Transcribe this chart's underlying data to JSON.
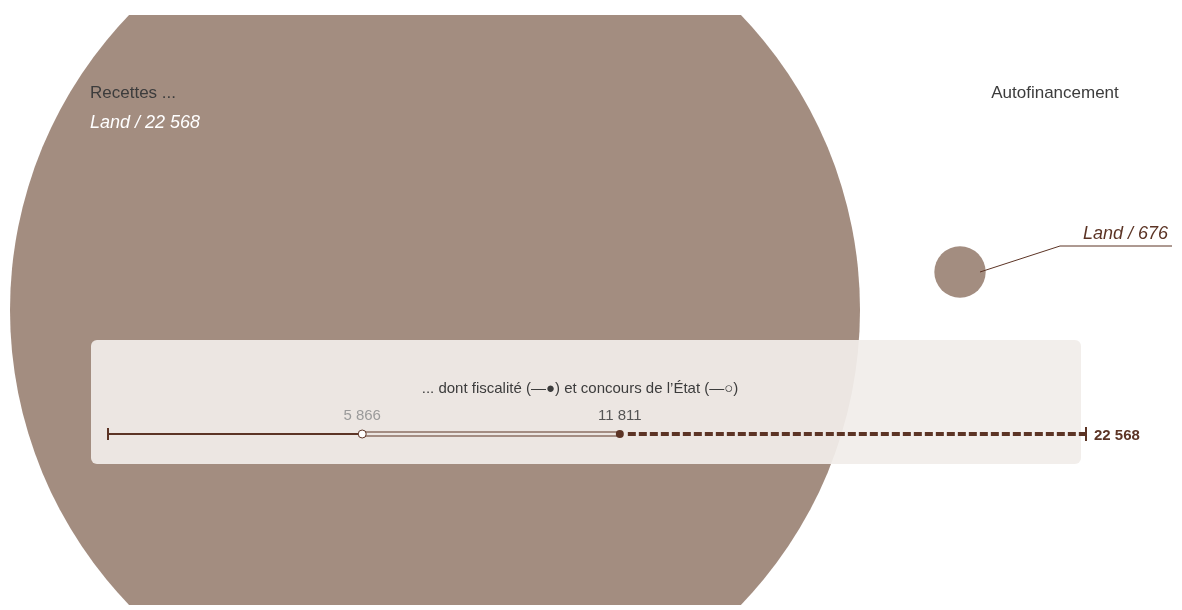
{
  "chart_data": [
    {
      "type": "other",
      "categories": [
        "Recettes ...",
        "Autofinancement"
      ],
      "values": [
        22568,
        676
      ],
      "value_labels": [
        "Land / 22 568",
        "Land / 676"
      ],
      "colors": [
        "#a38d80",
        "#a38d80"
      ]
    },
    {
      "type": "other",
      "title": "... dont fiscalité (—●) et concours de l’État (—○)",
      "values": [
        5866,
        11811,
        22568
      ],
      "value_labels": [
        "5 866",
        "11 811",
        "22 568"
      ],
      "colors": [
        "#9a9a9a",
        "#555555",
        "#5c3425"
      ]
    }
  ]
}
